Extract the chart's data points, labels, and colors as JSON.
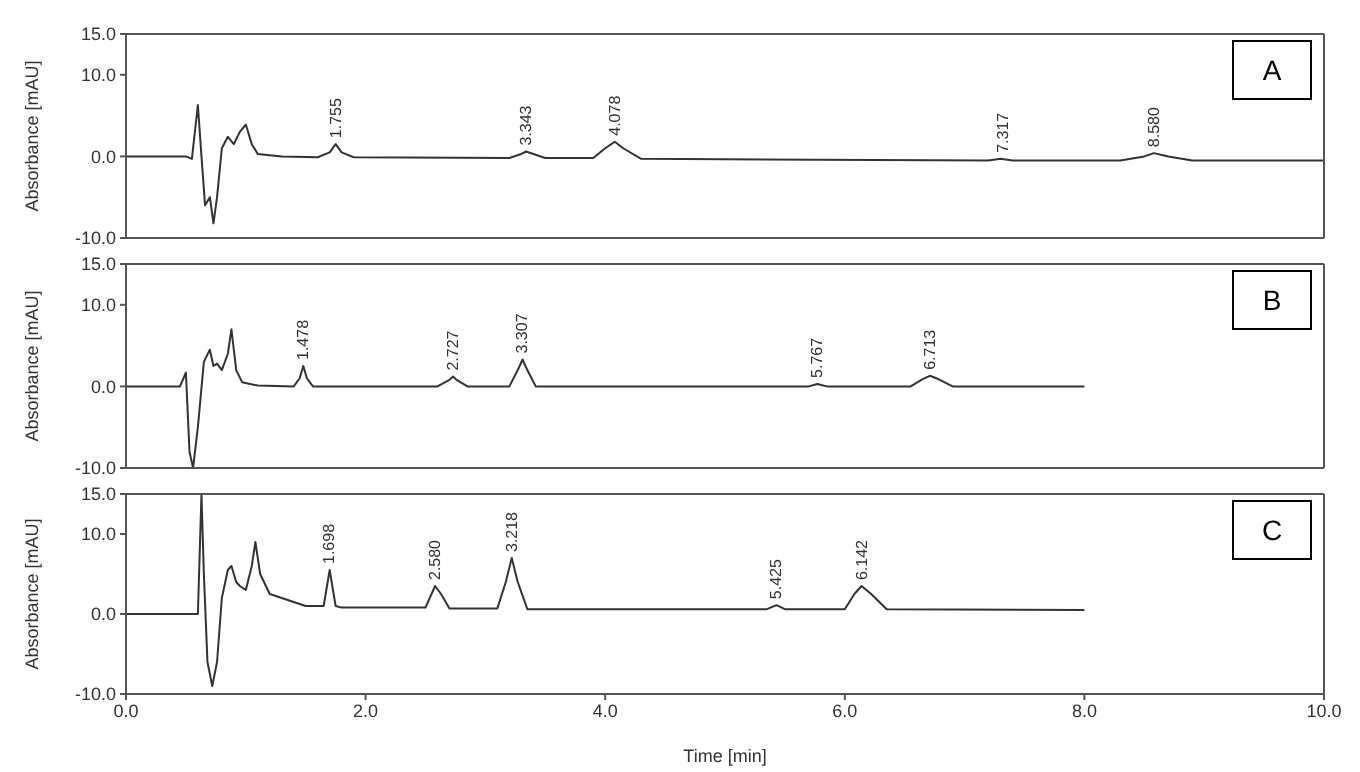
{
  "chart_data": [
    {
      "type": "line",
      "ylabel": "Absorbance [mAU]",
      "xlim": [
        0,
        10
      ],
      "ylim": [
        -10,
        15
      ],
      "yticks": [
        {
          "value": 15,
          "label": "15.0"
        },
        {
          "value": 10,
          "label": "10.0"
        },
        {
          "value": 0,
          "label": "0.0"
        },
        {
          "value": -10,
          "label": "-10.0"
        }
      ],
      "tick_labels": "y",
      "marker": "none",
      "line_style": "solid",
      "series": [
        {
          "color": "#333333",
          "x": [
            0,
            0.5,
            0.55,
            0.6,
            0.63,
            0.66,
            0.7,
            0.73,
            0.76,
            0.8,
            0.85,
            0.9,
            0.95,
            1.0,
            1.05,
            1.1,
            1.3,
            1.6,
            1.7,
            1.75,
            1.8,
            1.9,
            3.2,
            3.3,
            3.34,
            3.4,
            3.5,
            3.9,
            4.0,
            4.08,
            4.15,
            4.3,
            7.2,
            7.3,
            7.4,
            8.3,
            8.5,
            8.58,
            8.7,
            8.9,
            10
          ],
          "values": [
            0,
            0,
            -0.3,
            6.3,
            0,
            -6,
            -5,
            -8.2,
            -5,
            1,
            2.4,
            1.5,
            3,
            3.9,
            1.5,
            0.3,
            0,
            -0.1,
            0.5,
            1.5,
            0.5,
            -0.1,
            -0.2,
            0.3,
            0.6,
            0.3,
            -0.2,
            -0.2,
            1,
            1.8,
            1,
            -0.3,
            -0.5,
            -0.3,
            -0.5,
            -0.5,
            0,
            0.4,
            0,
            -0.5,
            -0.5
          ]
        }
      ],
      "annotations": [
        "A",
        {
          "text": "1.755",
          "x": 1.755,
          "y": 1.5
        },
        {
          "text": "3.343",
          "x": 3.343,
          "y": 0.6
        },
        {
          "text": "4.078",
          "x": 4.078,
          "y": 1.8
        },
        {
          "text": "7.317",
          "x": 7.317,
          "y": -0.3
        },
        {
          "text": "8.580",
          "x": 8.58,
          "y": 0.4
        }
      ]
    },
    {
      "type": "line",
      "ylabel": "Absorbance [mAU]",
      "xlim": [
        0,
        10
      ],
      "ylim": [
        -10,
        15
      ],
      "yticks": [
        {
          "value": 15,
          "label": "15.0"
        },
        {
          "value": 10,
          "label": "10.0"
        },
        {
          "value": 0,
          "label": "0.0"
        },
        {
          "value": -10,
          "label": "-10.0"
        }
      ],
      "tick_labels": "y",
      "marker": "none",
      "line_style": "solid",
      "series": [
        {
          "color": "#333333",
          "x": [
            0,
            0.45,
            0.48,
            0.5,
            0.53,
            0.56,
            0.6,
            0.65,
            0.7,
            0.73,
            0.76,
            0.8,
            0.85,
            0.88,
            0.92,
            0.97,
            1.1,
            1.4,
            1.45,
            1.48,
            1.51,
            1.56,
            2.6,
            2.7,
            2.73,
            2.76,
            2.85,
            3.2,
            3.27,
            3.31,
            3.35,
            3.42,
            5.7,
            5.77,
            5.85,
            6.55,
            6.65,
            6.71,
            6.78,
            6.9,
            8.0
          ],
          "values": [
            0,
            0,
            1,
            1.7,
            -8,
            -10,
            -5,
            3,
            4.5,
            2.5,
            2.8,
            2,
            4,
            7,
            2,
            0.5,
            0.1,
            0,
            1,
            2.5,
            1,
            0,
            0,
            0.8,
            1.2,
            0.8,
            0,
            0,
            2,
            3.3,
            2,
            0,
            0,
            0.3,
            0,
            0,
            0.9,
            1.3,
            0.9,
            0,
            0
          ]
        }
      ],
      "annotations": [
        "B",
        {
          "text": "1.478",
          "x": 1.478,
          "y": 2.5
        },
        {
          "text": "2.727",
          "x": 2.727,
          "y": 1.2
        },
        {
          "text": "3.307",
          "x": 3.307,
          "y": 3.3
        },
        {
          "text": "5.767",
          "x": 5.767,
          "y": 0.3
        },
        {
          "text": "6.713",
          "x": 6.713,
          "y": 1.3
        }
      ]
    },
    {
      "type": "line",
      "xlabel": "Time [min]",
      "ylabel": "Absorbance [mAU]",
      "xlim": [
        0,
        10
      ],
      "ylim": [
        -10,
        15
      ],
      "yticks": [
        {
          "value": 15,
          "label": "15.0"
        },
        {
          "value": 10,
          "label": "10.0"
        },
        {
          "value": 0,
          "label": "0.0"
        },
        {
          "value": -10,
          "label": "-10.0"
        }
      ],
      "xticks": [
        {
          "value": 0,
          "label": "0.0"
        },
        {
          "value": 2,
          "label": "2.0"
        },
        {
          "value": 4,
          "label": "4.0"
        },
        {
          "value": 6,
          "label": "6.0"
        },
        {
          "value": 8,
          "label": "8.0"
        },
        {
          "value": 10,
          "label": "10.0"
        }
      ],
      "marker": "none",
      "line_style": "solid",
      "series": [
        {
          "color": "#333333",
          "x": [
            0,
            0.6,
            0.63,
            0.65,
            0.68,
            0.72,
            0.76,
            0.8,
            0.85,
            0.88,
            0.92,
            0.95,
            1.0,
            1.05,
            1.08,
            1.12,
            1.2,
            1.5,
            1.65,
            1.7,
            1.75,
            1.8,
            2.5,
            2.55,
            2.58,
            2.63,
            2.7,
            3.1,
            3.17,
            3.22,
            3.27,
            3.35,
            5.35,
            5.43,
            5.5,
            6.0,
            6.08,
            6.14,
            6.22,
            6.35,
            8.0
          ],
          "values": [
            0,
            0,
            15,
            5,
            -6,
            -9,
            -6,
            2,
            5.5,
            6,
            4,
            3.5,
            3,
            6,
            9,
            5,
            2.5,
            1,
            1,
            5.5,
            1,
            0.8,
            0.8,
            2.5,
            3.5,
            2.5,
            0.7,
            0.7,
            4,
            7,
            4,
            0.6,
            0.6,
            1.1,
            0.6,
            0.6,
            2.5,
            3.5,
            2.5,
            0.6,
            0.5
          ]
        }
      ],
      "annotations": [
        "C",
        {
          "text": "1.698",
          "x": 1.698,
          "y": 5.5
        },
        {
          "text": "2.580",
          "x": 2.58,
          "y": 3.5
        },
        {
          "text": "3.218",
          "x": 3.218,
          "y": 7
        },
        {
          "text": "5.425",
          "x": 5.425,
          "y": 1.1
        },
        {
          "text": "6.142",
          "x": 6.142,
          "y": 3.5
        }
      ]
    }
  ]
}
